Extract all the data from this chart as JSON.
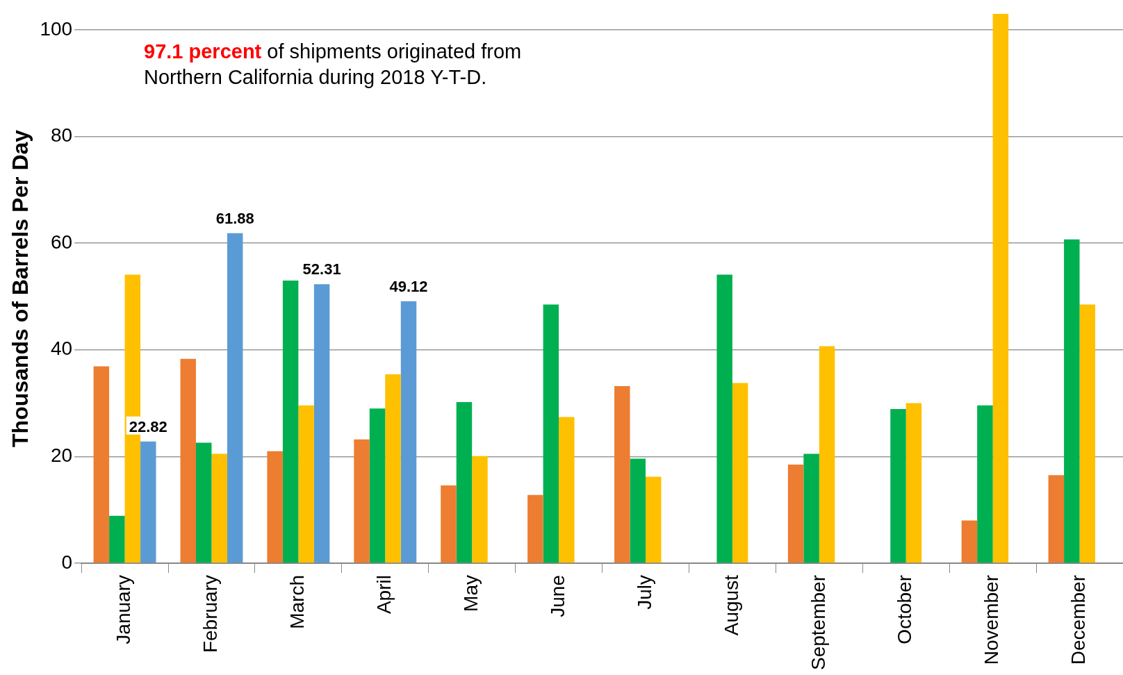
{
  "chart_data": {
    "type": "bar",
    "ylabel": "Thousands of Barrels Per Day",
    "categories": [
      "January",
      "February",
      "March",
      "April",
      "May",
      "June",
      "July",
      "August",
      "September",
      "October",
      "November",
      "December"
    ],
    "series": [
      {
        "color": "#ed7d31",
        "values": [
          36.9,
          38.3,
          21.0,
          23.2,
          14.6,
          12.8,
          33.2,
          0,
          18.5,
          0,
          8.0,
          16.5
        ]
      },
      {
        "color": "#00b050",
        "values": [
          8.9,
          22.6,
          53.0,
          29.0,
          30.2,
          48.5,
          19.6,
          54.1,
          20.5,
          28.9,
          29.6,
          60.7
        ]
      },
      {
        "color": "#ffc000",
        "values": [
          54.1,
          20.5,
          29.6,
          35.4,
          20.1,
          27.4,
          16.2,
          33.8,
          40.7,
          30.0,
          103,
          48.5
        ]
      },
      {
        "color": "#5b9bd5",
        "values": [
          22.82,
          61.88,
          52.31,
          49.12,
          null,
          null,
          null,
          null,
          null,
          null,
          null,
          null
        ],
        "value_labels": [
          "22.82",
          "61.88",
          "52.31",
          "49.12",
          null,
          null,
          null,
          null,
          null,
          null,
          null,
          null
        ]
      }
    ],
    "ylim": [
      0,
      103
    ],
    "yticks": [
      0,
      20,
      40,
      60,
      80,
      100
    ],
    "grid": "y",
    "legend": false,
    "annotations": [
      "97.1 percent",
      " of shipments originated from\nNorthern California during 2018 Y-T-D."
    ]
  }
}
